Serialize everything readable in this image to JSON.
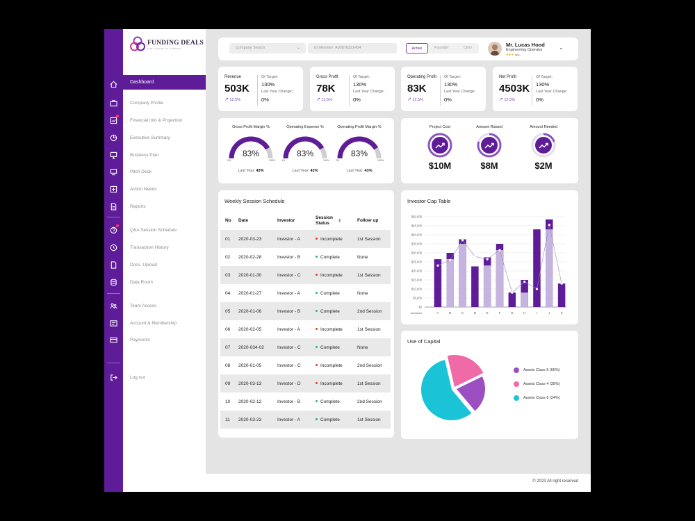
{
  "brand": {
    "name": "FUNDING DEALS",
    "tagline": "THE FUTURE OF FUNDING",
    "primary": "#5e1c98",
    "light": "#c5b4e0"
  },
  "nav": {
    "items": [
      "Dashboard",
      "Company Profile",
      "Financial Info & Projection",
      "Executive Summary",
      "Business Plan",
      "Pitch Deck",
      "Action Needs",
      "Reports",
      "Q&A Session Schedule",
      "Transaction History",
      "Docs. Upload",
      "Data Room",
      "Team Access",
      "Account & Membership",
      "Payments",
      "Log out"
    ],
    "rail_icons": [
      "home-icon",
      "briefcase-icon",
      "chart-icon",
      "pie-icon",
      "presentation-icon",
      "deck-icon",
      "plus-box-icon",
      "document-icon",
      "question-icon",
      "clock-icon",
      "file-icon",
      "database-icon",
      "team-icon",
      "id-card-icon",
      "card-icon",
      "logout-icon"
    ]
  },
  "topbar": {
    "company_search": "Company Search",
    "id_member": "ID Member: A09878321454",
    "tabs": [
      "Active",
      "Founder",
      "CEO"
    ],
    "user_name": "Mr. Lucas Hood",
    "user_role": "Engineering Operator",
    "user_stars": "★★★",
    "user_level": "Platinum"
  },
  "kpis": [
    {
      "label": "Revenue",
      "value": "503K",
      "trend": "12.5%",
      "of_target_label": "Of Target:",
      "of_target": "130%",
      "ly_label": "Last Year Change:",
      "ly": "0%"
    },
    {
      "label": "Gross Profit",
      "value": "78K",
      "trend": "12.5%",
      "of_target_label": "Of Target:",
      "of_target": "130%",
      "ly_label": "Last Year Change:",
      "ly": "0%"
    },
    {
      "label": "Operating Profit",
      "value": "83K",
      "trend": "12.5%",
      "of_target_label": "Of Target:",
      "of_target": "130%",
      "ly_label": "Last Year Change:",
      "ly": "0%"
    },
    {
      "label": "Net Profit",
      "value": "4503K",
      "trend": "12.5%",
      "of_target_label": "Of Target:",
      "of_target": "130%",
      "ly_label": "Last Year Change:",
      "ly": "0%"
    }
  ],
  "gauges": [
    {
      "label": "Gross Profit Margin %",
      "percent": "83%",
      "fraction": 0.83,
      "min": "0%",
      "max": "100%",
      "ly_label": "Last Year:",
      "ly": "43%"
    },
    {
      "label": "Operating Expense %",
      "percent": "83%",
      "fraction": 0.83,
      "min": "0%",
      "max": "100%",
      "ly_label": "Last Year:",
      "ly": "43%"
    },
    {
      "label": "Operating Profit Margin %",
      "percent": "83%",
      "fraction": 0.83,
      "min": "0%",
      "max": "100%",
      "ly_label": "Last Year:",
      "ly": "43%"
    }
  ],
  "project": [
    {
      "label": "Project Cost",
      "value": "$10M",
      "fraction": 1.0
    },
    {
      "label": "Amount Raised",
      "value": "$8M",
      "fraction": 0.8
    },
    {
      "label": "Amount Needed",
      "value": "$2M",
      "fraction": 0.2
    }
  ],
  "schedule": {
    "title": "Weekly Session Schedule",
    "columns": [
      "No",
      "Date",
      "Investor",
      "Session Status",
      "Follow up"
    ],
    "rows": [
      {
        "no": "01",
        "date": "2020-03-23",
        "investor": "Investor - A",
        "status": "Incomplete",
        "follow": "1st Session"
      },
      {
        "no": "02",
        "date": "2020-02-28",
        "investor": "Investor - B",
        "status": "Complete",
        "follow": "None"
      },
      {
        "no": "03",
        "date": "2020-01-30",
        "investor": "Investor - C",
        "status": "Incomplete",
        "follow": "1st Session"
      },
      {
        "no": "04",
        "date": "2020-01-27",
        "investor": "Investor - A",
        "status": "Complete",
        "follow": "None"
      },
      {
        "no": "05",
        "date": "2020-01-06",
        "investor": "Investor - B",
        "status": "Complete",
        "follow": "2nd Session"
      },
      {
        "no": "06",
        "date": "2020-02-05",
        "investor": "Investor - A",
        "status": "Incomplete",
        "follow": "1st Session"
      },
      {
        "no": "07",
        "date": "2020-034-02",
        "investor": "Investor - C",
        "status": "Complete",
        "follow": "None"
      },
      {
        "no": "08",
        "date": "2020-01-05",
        "investor": "Investor - C",
        "status": "Incomplete",
        "follow": "2nd Session"
      },
      {
        "no": "09",
        "date": "2020-03-13",
        "investor": "Investor - D",
        "status": "Incomplete",
        "follow": "1st Session"
      },
      {
        "no": "10",
        "date": "2020-02-12",
        "investor": "Investor - B",
        "status": "Complete",
        "follow": "2nd Session"
      },
      {
        "no": "11",
        "date": "2020-03-23",
        "investor": "Investor - A",
        "status": "Complete",
        "follow": "1st Session"
      }
    ],
    "status_colors": {
      "Incomplete": "#e53935",
      "Complete": "#2bb673"
    }
  },
  "cap_table": {
    "title": "Investor Cap Table",
    "chart_data": {
      "type": "bar",
      "xlabel": "Investors",
      "categories": [
        "A",
        "B",
        "C",
        "D",
        "E",
        "F",
        "G",
        "H",
        "I",
        "J",
        "K"
      ],
      "ylim": [
        0,
        50000
      ],
      "yticks": [
        "$0",
        "$5,000",
        "$10,000",
        "$15,000",
        "$20,000",
        "$25,000",
        "$30,000",
        "$35,000",
        "$40,000",
        "$45,000",
        "$50,000"
      ],
      "series": [
        {
          "values": [
            26500,
            30000,
            37500,
            22500,
            27500,
            35000,
            8000,
            15000,
            43000,
            48500,
            13000
          ]
        },
        {
          "values": [
            0,
            26500,
            35000,
            0,
            23000,
            31500,
            0,
            8000,
            0,
            43000,
            0
          ]
        }
      ],
      "line_values": [
        23000,
        26000,
        37000,
        28000,
        26500,
        31500,
        8000,
        14000,
        10000,
        45500,
        13000
      ]
    }
  },
  "use_of_capital": {
    "title": "Use of Capital",
    "chart_data": {
      "type": "pie",
      "labels": [
        "Assets Class 5 (66%)",
        "Assets Class 4 (35%)",
        "Assets Class 6 (24%)"
      ],
      "colors": [
        "#9b4fc0",
        "#f06aa7",
        "#1bc3d6"
      ]
    }
  },
  "footer": "© 2023 All right reserved"
}
